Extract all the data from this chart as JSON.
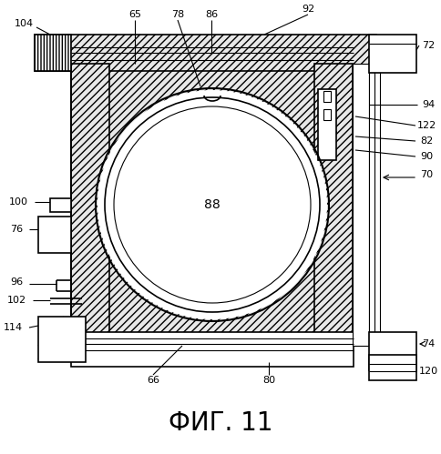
{
  "title": "ФИГ. 11",
  "title_fontsize": 20,
  "background_color": "#ffffff",
  "line_color": "#000000",
  "fig_size": [
    4.84,
    4.99
  ],
  "dpi": 100
}
